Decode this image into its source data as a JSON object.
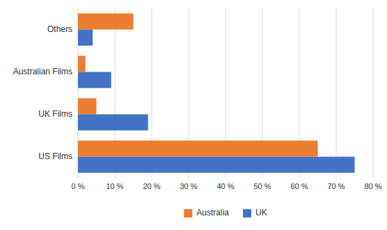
{
  "chart_data": {
    "type": "bar",
    "orientation": "horizontal",
    "categories": [
      "US Films",
      "UK Films",
      "Australian Films",
      "Others"
    ],
    "series": [
      {
        "name": "Australia",
        "color": "#ED7D31",
        "values": [
          65,
          5,
          2,
          15
        ]
      },
      {
        "name": "UK",
        "color": "#4472C4",
        "values": [
          75,
          19,
          9,
          4
        ]
      }
    ],
    "xlim": [
      0,
      80
    ],
    "xticks": [
      {
        "value": 0,
        "label": "0 %"
      },
      {
        "value": 10,
        "label": "10 %"
      },
      {
        "value": 20,
        "label": "20 %"
      },
      {
        "value": 30,
        "label": "30 %"
      },
      {
        "value": 40,
        "label": "40 %"
      },
      {
        "value": 50,
        "label": "50 %"
      },
      {
        "value": 60,
        "label": "60 %"
      },
      {
        "value": 70,
        "label": "70 %"
      },
      {
        "value": 80,
        "label": "80 %"
      }
    ],
    "grid": true,
    "legend": "bottom"
  }
}
